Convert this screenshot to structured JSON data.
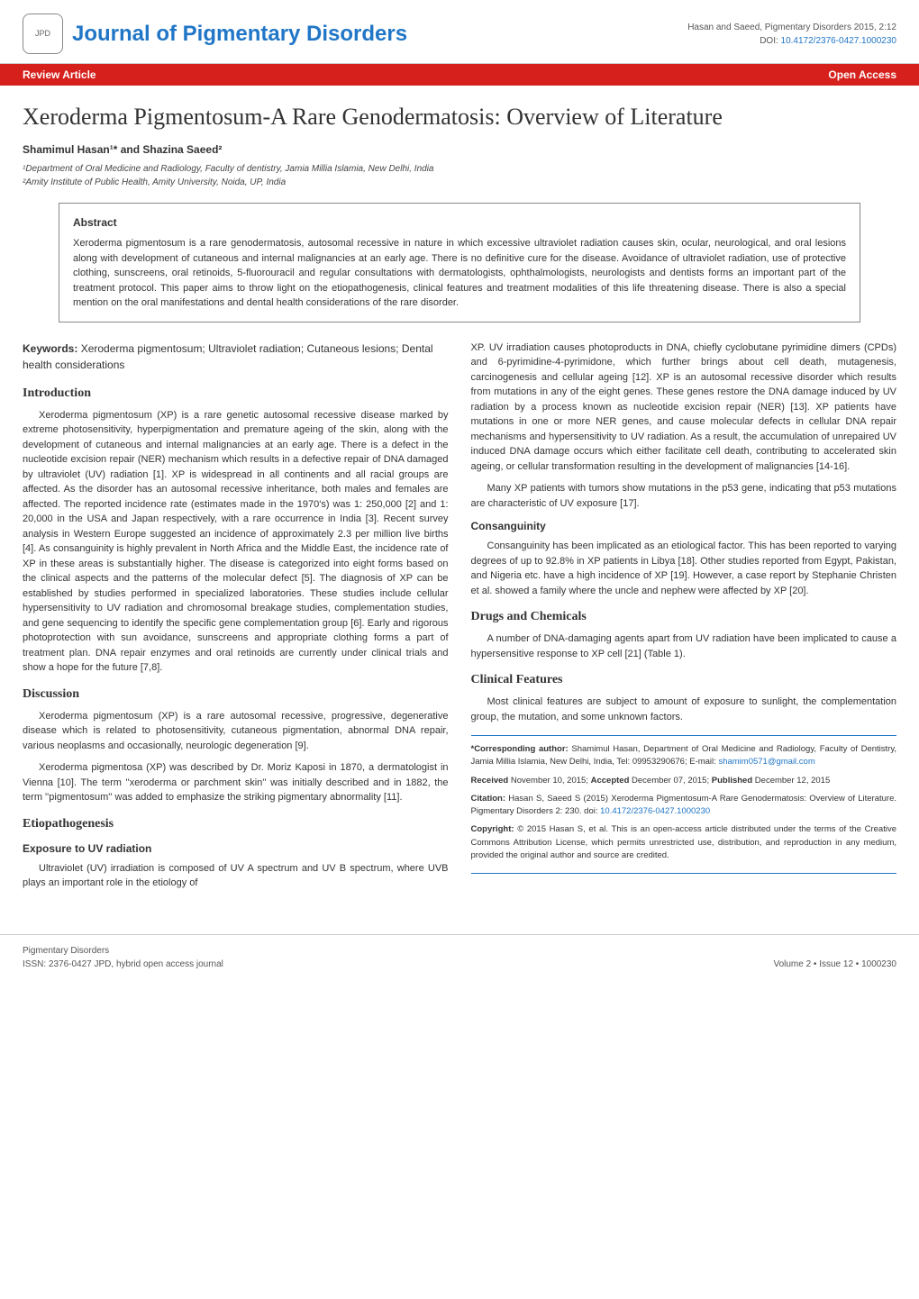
{
  "header": {
    "logo_text": "JPD",
    "journal_title": "Journal of Pigmentary Disorders",
    "citation_short": "Hasan and Saeed, Pigmentary Disorders 2015, 2:12",
    "doi_label": "DOI:",
    "doi": "10.4172/2376-0427.1000230",
    "issn_small": "ISSN: 2376-0427"
  },
  "bar": {
    "left": "Review Article",
    "right": "Open Access"
  },
  "article": {
    "title": "Xeroderma Pigmentosum-A Rare Genodermatosis: Overview of Literature",
    "authors": "Shamimul Hasan¹* and Shazina Saeed²",
    "affil1": "¹Department of Oral Medicine and Radiology, Faculty of dentistry, Jamia Millia Islamia, New Delhi, India",
    "affil2": "²Amity Institute of Public Health, Amity University, Noida, UP, India"
  },
  "abstract": {
    "heading": "Abstract",
    "text": "Xeroderma pigmentosum is a rare genodermatosis, autosomal recessive in nature in which excessive ultraviolet radiation causes skin, ocular, neurological, and oral lesions along with development of cutaneous and internal malignancies at an early age. There is no definitive cure for the disease. Avoidance of ultraviolet radiation, use of protective clothing, sunscreens, oral retinoids, 5-fluorouracil and regular consultations with dermatologists, ophthalmologists, neurologists and dentists forms an important part of the treatment protocol. This paper aims to throw light on the etiopathogenesis, clinical features and treatment modalities of this life threatening disease. There is also a special mention on the oral manifestations and dental health considerations of the rare disorder."
  },
  "keywords": {
    "label": "Keywords:",
    "text": "Xeroderma pigmentosum; Ultraviolet radiation; Cutaneous lesions; Dental health considerations"
  },
  "sections": {
    "intro_h": "Introduction",
    "intro_p1": "Xeroderma pigmentosum (XP) is a rare genetic autosomal recessive disease marked by extreme photosensitivity, hyperpigmentation and premature ageing of the skin, along with the development of cutaneous and internal malignancies at an early age. There is a defect in the nucleotide excision repair (NER) mechanism which results in a defective repair of DNA damaged by ultraviolet (UV) radiation [1]. XP is widespread in all continents and all racial groups are affected. As the disorder has an autosomal recessive inheritance, both males and females are affected. The reported incidence rate (estimates made in the 1970's) was 1: 250,000 [2] and 1: 20,000 in the USA and Japan respectively, with a rare occurrence in India [3]. Recent survey analysis in Western Europe suggested an incidence of approximately 2.3 per million live births [4]. As consanguinity is highly prevalent in North Africa and the Middle East, the incidence rate of XP in these areas is substantially higher. The disease is categorized into eight forms based on the clinical aspects and the patterns of the molecular defect [5]. The diagnosis of XP can be established by studies performed in specialized laboratories. These studies include cellular hypersensitivity to UV radiation and chromosomal breakage studies, complementation studies, and gene sequencing to identify the specific gene complementation group [6]. Early and rigorous photoprotection with sun avoidance, sunscreens and appropriate clothing forms a part of treatment plan. DNA repair enzymes and oral retinoids are currently under clinical trials and show a hope for the future [7,8].",
    "disc_h": "Discussion",
    "disc_p1": "Xeroderma pigmentosum (XP) is a rare autosomal recessive, progressive, degenerative disease which is related to photosensitivity, cutaneous pigmentation, abnormal DNA repair, various neoplasms and occasionally, neurologic degeneration [9].",
    "disc_p2": "Xeroderma pigmentosa (XP) was described by Dr. Moriz Kaposi in 1870, a dermatologist in Vienna [10]. The term ''xeroderma or parchment skin'' was initially described and in 1882, the term ''pigmentosum'' was added to emphasize the striking pigmentary abnormality [11].",
    "etio_h": "Etiopathogenesis",
    "uv_h": "Exposure to UV radiation",
    "uv_p1": "Ultraviolet (UV) irradiation is composed of UV A spectrum and UV B spectrum, where UVB plays an important role in the etiology of XP. UV irradiation causes photoproducts in DNA, chiefly cyclobutane pyrimidine dimers (CPDs) and 6-pyrimidine-4-pyrimidone, which further brings about cell death, mutagenesis, carcinogenesis and cellular ageing [12]. XP is an autosomal recessive disorder which results from mutations in any of the eight genes. These genes restore the DNA damage induced by UV radiation by a process known as nucleotide excision repair (NER) [13]. XP patients have mutations in one or more NER genes, and cause molecular defects in cellular DNA repair mechanisms and hypersensitivity to UV radiation. As a result, the accumulation of unrepaired UV induced DNA damage occurs which either facilitate cell death, contributing to accelerated skin ageing, or cellular transformation resulting in the development of malignancies [14-16].",
    "uv_p2": "Many XP patients with tumors show mutations in the p53 gene, indicating that p53 mutations are characteristic of UV exposure [17].",
    "consang_h": "Consanguinity",
    "consang_p1": "Consanguinity has been implicated as an etiological factor. This has been reported to varying degrees of up to 92.8% in XP patients in Libya [18]. Other studies reported from Egypt, Pakistan, and Nigeria etc. have a high incidence of XP [19]. However, a case report by Stephanie Christen et al. showed a family where the uncle and nephew were affected by XP [20].",
    "drugs_h": "Drugs and Chemicals",
    "drugs_p1": "A number of DNA-damaging agents apart from UV radiation have been implicated to cause a hypersensitive response to XP cell [21] (Table 1).",
    "clin_h": "Clinical Features",
    "clin_p1": "Most clinical features are subject to amount of exposure to sunlight, the complementation group, the mutation, and some unknown factors."
  },
  "corr": {
    "label": "*Corresponding author:",
    "text": "Shamimul Hasan, Department of Oral Medicine and Radiology, Faculty of Dentistry, Jamia Millia Islamia, New Delhi, India, Tel: 09953290676; E-mail:",
    "email": "shamim0571@gmail.com"
  },
  "dates": {
    "received_l": "Received",
    "received": "November 10, 2015;",
    "accepted_l": "Accepted",
    "accepted": "December 07, 2015;",
    "published_l": "Published",
    "published": "December 12, 2015"
  },
  "citation": {
    "label": "Citation:",
    "text": "Hasan S, Saeed S (2015) Xeroderma Pigmentosum-A Rare Genodermatosis: Overview of Literature. Pigmentary Disorders 2: 230. doi:",
    "doi": "10.4172/2376-0427.1000230"
  },
  "copyright": {
    "label": "Copyright:",
    "text": "© 2015 Hasan S, et al. This is an open-access article distributed under the terms of the Creative Commons Attribution License, which permits unrestricted use, distribution, and reproduction in any medium, provided the original author and source are credited."
  },
  "footer": {
    "left1": "Pigmentary Disorders",
    "left2": "ISSN: 2376-0427 JPD, hybrid open access journal",
    "right": "Volume 2 • Issue 12 • 1000230"
  },
  "colors": {
    "accent_blue": "#2176c7",
    "bar_red": "#d6201c",
    "text": "#333333",
    "background": "#ffffff"
  }
}
